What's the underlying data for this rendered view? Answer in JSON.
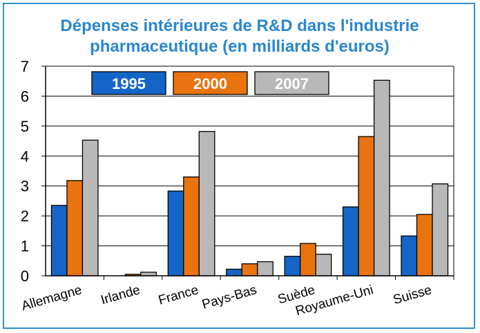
{
  "chart_data": {
    "type": "bar",
    "title": "Dépenses intérieures de R&D dans l'industrie pharmaceutique (en milliards d'euros)",
    "title_lines": [
      "Dépenses intérieures de R&D dans l'industrie",
      "pharmaceutique (en milliards d'euros)"
    ],
    "categories": [
      "Allemagne",
      "Irlande",
      "France",
      "Pays-Bas",
      "Suède",
      "Royaume-Uni",
      "Suisse"
    ],
    "series": [
      {
        "name": "1995",
        "color": "#1565c8",
        "values": [
          2.35,
          0.0,
          2.83,
          0.22,
          0.65,
          2.3,
          1.33
        ]
      },
      {
        "name": "2000",
        "color": "#e8730f",
        "values": [
          3.18,
          0.05,
          3.3,
          0.4,
          1.08,
          4.65,
          2.05
        ]
      },
      {
        "name": "2007",
        "color": "#b8b8b8",
        "values": [
          4.53,
          0.12,
          4.82,
          0.47,
          0.72,
          6.53,
          3.07
        ]
      }
    ],
    "ylim": [
      0,
      7
    ],
    "yticks": [
      "0",
      "1",
      "2",
      "3",
      "4",
      "5",
      "6",
      "7"
    ],
    "grid": true,
    "legend_position": "top"
  }
}
